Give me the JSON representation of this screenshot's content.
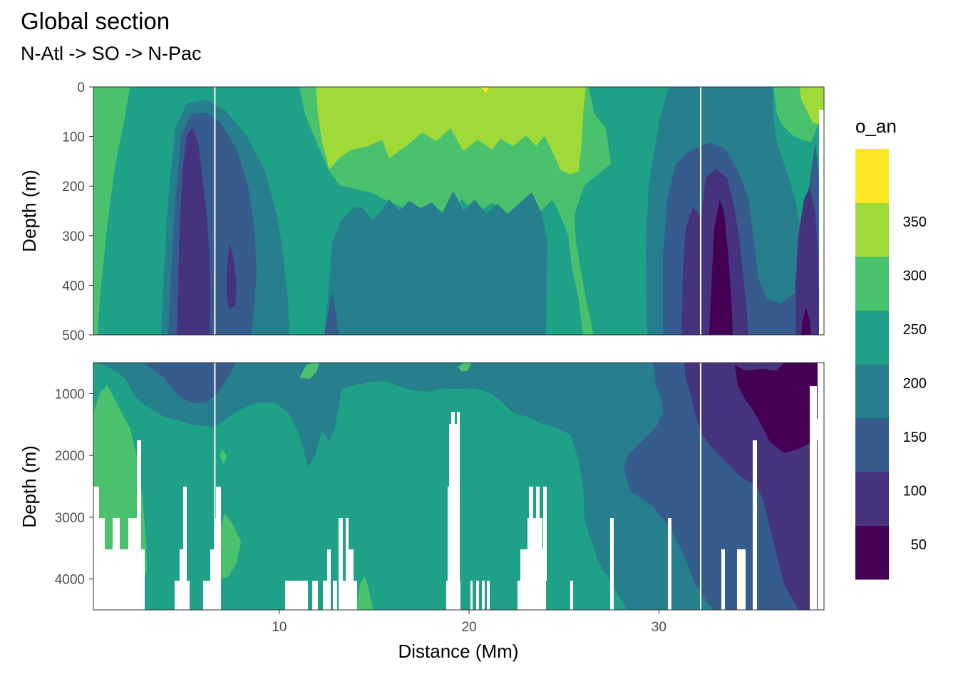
{
  "chart_data": {
    "type": "heatmap",
    "title": "Global section",
    "subtitle": "N-Atl -> SO -> N-Pac",
    "xlabel": "Distance (Mm)",
    "panels": [
      {
        "ylabel": "Depth (m)",
        "ylim": [
          0,
          500
        ],
        "yticks": [
          0,
          100,
          200,
          300,
          400,
          500
        ]
      },
      {
        "ylabel": "Depth (m)",
        "ylim": [
          500,
          4500
        ],
        "yticks": [
          1000,
          2000,
          3000,
          4000
        ]
      }
    ],
    "xlim": [
      0.2,
      38.7
    ],
    "xticks": [
      10,
      20,
      30
    ],
    "basin_boundaries_x": [
      6.6,
      32.2
    ],
    "legend": {
      "title": "o_an",
      "position": "right",
      "breaks": [
        50,
        100,
        150,
        200,
        250,
        300,
        350
      ],
      "colors": [
        "#440154",
        "#46337e",
        "#365c8d",
        "#277f8e",
        "#1fa187",
        "#4ac16d",
        "#a0da39",
        "#fde725"
      ]
    },
    "level_colors": [
      "#440154",
      "#46337e",
      "#365c8d",
      "#277f8e",
      "#1fa187",
      "#4ac16d",
      "#a0da39",
      "#fde725"
    ],
    "grid": true
  }
}
